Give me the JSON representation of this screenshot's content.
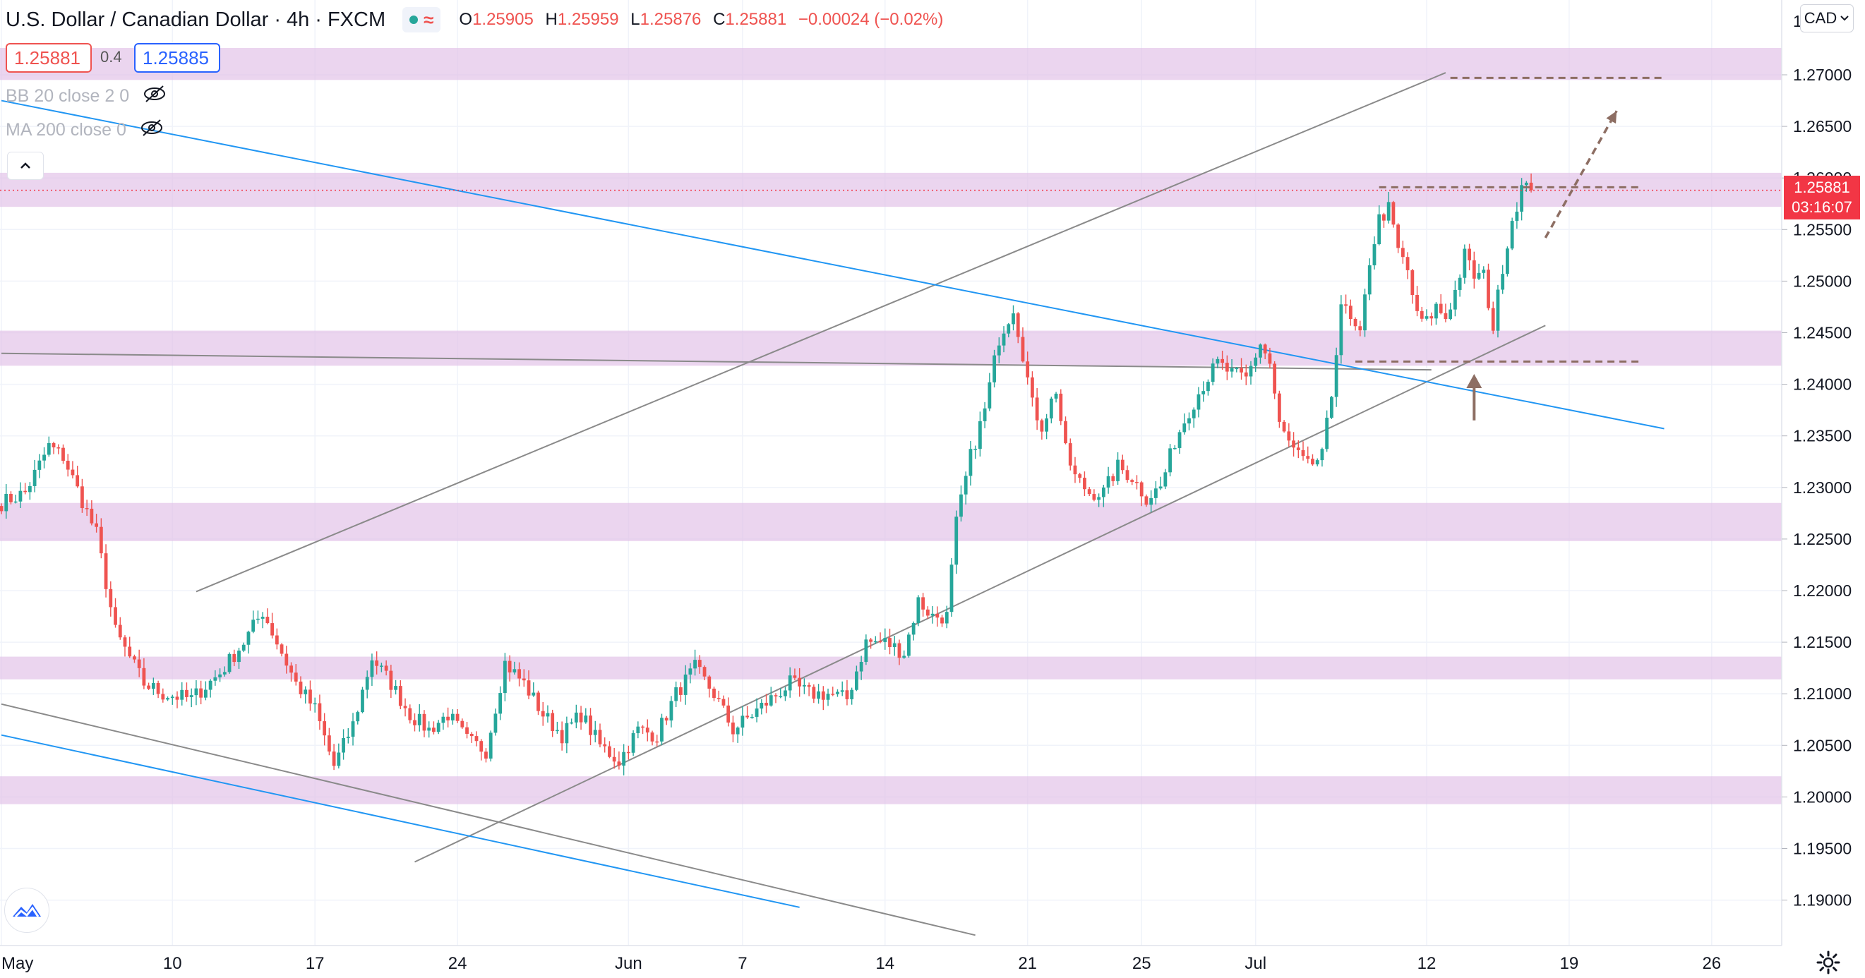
{
  "header": {
    "symbol": "U.S. Dollar / Canadian Dollar",
    "interval": "4h",
    "exchange": "FXCM",
    "separator": "·",
    "ohlc": {
      "o_label": "O",
      "o": "1.25905",
      "h_label": "H",
      "h": "1.25959",
      "l_label": "L",
      "l": "1.25876",
      "c_label": "C",
      "c": "1.25881",
      "change": "−0.00024 (−0.02%)"
    }
  },
  "trade": {
    "sell_price": "1.25881",
    "spread": "0.4",
    "buy_price": "1.25885"
  },
  "indicators": [
    {
      "label": "BB 20 close 2 0"
    },
    {
      "label": "MA 200 close 0"
    }
  ],
  "currency_button": "CAD",
  "last_price": {
    "price": "1.25881",
    "countdown": "03:16:07"
  },
  "colors": {
    "up": "#26a69a",
    "down": "#ef5350",
    "zone": "#e1bee7",
    "channel_gray": "#8a8a8a",
    "trend_blue": "#2196f3",
    "annotation_brown": "#8d6e63",
    "price_tag": "#f23645"
  },
  "icons": [
    "eye-off-icon",
    "chevron-up-icon",
    "chevron-down-icon",
    "tradingview-logo-icon",
    "gear-icon",
    "arrow-up-icon"
  ],
  "chart_data": {
    "type": "candlestick",
    "y_axis": {
      "range": [
        1.1865,
        1.275
      ],
      "ticks": [
        "1.27000",
        "1.26500",
        "1.26000",
        "1.25500",
        "1.25000",
        "1.24500",
        "1.24000",
        "1.23500",
        "1.23000",
        "1.22500",
        "1.22000",
        "1.21500",
        "1.21000",
        "1.20500",
        "1.20000",
        "1.19500",
        "1.19000"
      ],
      "partial_top_label": "1"
    },
    "x_axis": {
      "ticks": [
        {
          "label": "May",
          "bar": 0
        },
        {
          "label": "10",
          "bar": 36
        },
        {
          "label": "17",
          "bar": 66
        },
        {
          "label": "24",
          "bar": 96
        },
        {
          "label": "Jun",
          "bar": 132
        },
        {
          "label": "7",
          "bar": 156
        },
        {
          "label": "14",
          "bar": 186
        },
        {
          "label": "21",
          "bar": 216
        },
        {
          "label": "25",
          "bar": 240
        },
        {
          "label": "Jul",
          "bar": 264
        },
        {
          "label": "12",
          "bar": 300
        },
        {
          "label": "19",
          "bar": 330
        },
        {
          "label": "26",
          "bar": 360
        }
      ]
    },
    "anchors": [
      [
        0,
        1.2285
      ],
      [
        5,
        1.2295
      ],
      [
        10,
        1.234
      ],
      [
        13,
        1.233
      ],
      [
        20,
        1.2255
      ],
      [
        24,
        1.216
      ],
      [
        30,
        1.211
      ],
      [
        34,
        1.21
      ],
      [
        40,
        1.2095
      ],
      [
        46,
        1.212
      ],
      [
        51,
        1.215
      ],
      [
        55,
        1.218
      ],
      [
        58,
        1.215
      ],
      [
        62,
        1.211
      ],
      [
        66,
        1.2085
      ],
      [
        70,
        1.203
      ],
      [
        74,
        1.207
      ],
      [
        78,
        1.2135
      ],
      [
        82,
        1.211
      ],
      [
        86,
        1.208
      ],
      [
        90,
        1.2065
      ],
      [
        94,
        1.208
      ],
      [
        98,
        1.2055
      ],
      [
        102,
        1.2045
      ],
      [
        106,
        1.213
      ],
      [
        110,
        1.211
      ],
      [
        114,
        1.208
      ],
      [
        118,
        1.206
      ],
      [
        122,
        1.208
      ],
      [
        126,
        1.205
      ],
      [
        130,
        1.2035
      ],
      [
        134,
        1.2065
      ],
      [
        138,
        1.206
      ],
      [
        142,
        1.21
      ],
      [
        146,
        1.2125
      ],
      [
        150,
        1.21
      ],
      [
        154,
        1.2065
      ],
      [
        158,
        1.208
      ],
      [
        162,
        1.2095
      ],
      [
        166,
        1.211
      ],
      [
        170,
        1.21
      ],
      [
        174,
        1.21
      ],
      [
        178,
        1.2095
      ],
      [
        182,
        1.215
      ],
      [
        186,
        1.215
      ],
      [
        190,
        1.214
      ],
      [
        193,
        1.219
      ],
      [
        196,
        1.2175
      ],
      [
        199,
        1.2175
      ],
      [
        201,
        1.2265
      ],
      [
        204,
        1.233
      ],
      [
        207,
        1.2375
      ],
      [
        210,
        1.2445
      ],
      [
        213,
        1.2475
      ],
      [
        215,
        1.243
      ],
      [
        217,
        1.238
      ],
      [
        219,
        1.236
      ],
      [
        222,
        1.2395
      ],
      [
        224,
        1.2335
      ],
      [
        226,
        1.231
      ],
      [
        229,
        1.2295
      ],
      [
        232,
        1.2295
      ],
      [
        235,
        1.232
      ],
      [
        238,
        1.231
      ],
      [
        241,
        1.229
      ],
      [
        244,
        1.23
      ],
      [
        247,
        1.2345
      ],
      [
        250,
        1.2375
      ],
      [
        253,
        1.24
      ],
      [
        256,
        1.242
      ],
      [
        259,
        1.241
      ],
      [
        262,
        1.2405
      ],
      [
        265,
        1.244
      ],
      [
        267,
        1.242
      ],
      [
        269,
        1.236
      ],
      [
        272,
        1.2335
      ],
      [
        275,
        1.232
      ],
      [
        278,
        1.233
      ],
      [
        280,
        1.239
      ],
      [
        282,
        1.248
      ],
      [
        284,
        1.246
      ],
      [
        286,
        1.2445
      ],
      [
        288,
        1.252
      ],
      [
        290,
        1.256
      ],
      [
        292,
        1.257
      ],
      [
        294,
        1.253
      ],
      [
        296,
        1.251
      ],
      [
        298,
        1.2465
      ],
      [
        300,
        1.246
      ],
      [
        302,
        1.2475
      ],
      [
        304,
        1.2465
      ],
      [
        306,
        1.249
      ],
      [
        308,
        1.2525
      ],
      [
        310,
        1.2505
      ],
      [
        312,
        1.2505
      ],
      [
        314,
        1.2455
      ],
      [
        316,
        1.2515
      ],
      [
        318,
        1.256
      ],
      [
        320,
        1.259
      ],
      [
        322,
        1.25881
      ]
    ],
    "zones": [
      {
        "from": 1.2695,
        "to": 1.2726
      },
      {
        "from": 1.2572,
        "to": 1.2605
      },
      {
        "from": 1.2418,
        "to": 1.2452
      },
      {
        "from": 1.2248,
        "to": 1.2285
      },
      {
        "from": 1.2114,
        "to": 1.2136
      },
      {
        "from": 1.1993,
        "to": 1.202
      }
    ],
    "trendlines": [
      {
        "color": "gray",
        "from": [
          41,
          1.2199
        ],
        "to": [
          304,
          1.2702
        ]
      },
      {
        "color": "gray",
        "from": [
          87,
          1.1937
        ],
        "to": [
          325,
          1.2457
        ]
      },
      {
        "color": "gray",
        "from": [
          0,
          1.243
        ],
        "to": [
          301,
          1.2414
        ]
      },
      {
        "color": "gray",
        "from": [
          0,
          1.209
        ],
        "to": [
          205,
          1.1866
        ]
      },
      {
        "color": "blue",
        "from": [
          0,
          1.2675
        ],
        "to": [
          350,
          1.2357
        ]
      },
      {
        "color": "blue",
        "from": [
          0,
          1.206
        ],
        "to": [
          168,
          1.1893
        ]
      }
    ],
    "dashed_levels": [
      {
        "price": 1.2697,
        "from_bar": 305,
        "to_bar": 350
      },
      {
        "price": 1.2591,
        "from_bar": 290,
        "to_bar": 345
      },
      {
        "price": 1.2422,
        "from_bar": 285,
        "to_bar": 345
      }
    ],
    "projection_arrow": {
      "from": [
        325,
        1.2542
      ],
      "to": [
        340,
        1.2665
      ]
    },
    "support_arrow": {
      "from": [
        310,
        1.2365
      ],
      "to": [
        310,
        1.241
      ]
    },
    "last_price_line": 1.25881
  }
}
